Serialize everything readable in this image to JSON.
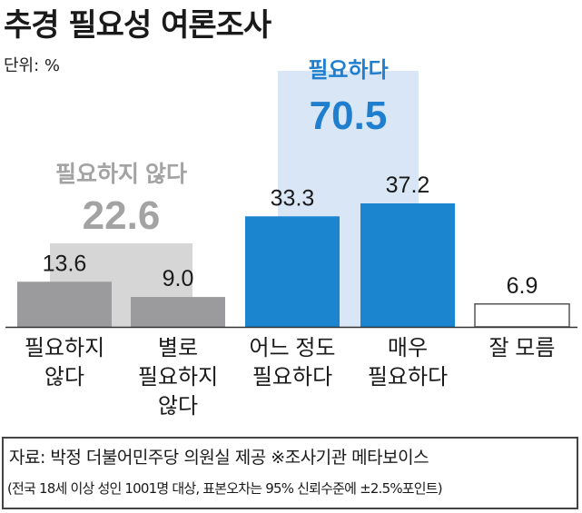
{
  "title": "추경 필요성 여론조사",
  "unit": "단위: %",
  "chart_data": {
    "type": "bar",
    "categories": [
      [
        "필요하지",
        "않다"
      ],
      [
        "별로",
        "필요하지",
        "않다"
      ],
      [
        "어느 정도",
        "필요하다"
      ],
      [
        "매우",
        "필요하다"
      ],
      [
        "잘 모름"
      ]
    ],
    "values": [
      13.6,
      9.0,
      33.3,
      37.2,
      6.9
    ],
    "value_labels": [
      "13.6",
      "9.0",
      "33.3",
      "37.2",
      "6.9"
    ],
    "ylim": [
      0,
      40
    ],
    "groups": [
      {
        "label": "필요하지 않다",
        "total": "22.6",
        "color": "#d6d6d6",
        "label_color": "#a3a3a3",
        "members": [
          0,
          1
        ]
      },
      {
        "label": "필요하다",
        "total": "70.5",
        "color": "#d9e6f6",
        "label_color": "#1f7fce",
        "members": [
          2,
          3
        ]
      }
    ],
    "bar_colors": [
      "#9b9b9d",
      "#9b9b9d",
      "#1b85d0",
      "#1b85d0",
      "#ffffff"
    ],
    "bar_stroke": "#555555",
    "grid": false
  },
  "source": {
    "line1": "자료: 박정 더불어민주당 의원실 제공 ※조사기관 메타보이스",
    "line2": "(전국 18세 이상 성인 1001명 대상, 표본오차는 95% 신뢰수준에 ±2.5%포인트)"
  }
}
